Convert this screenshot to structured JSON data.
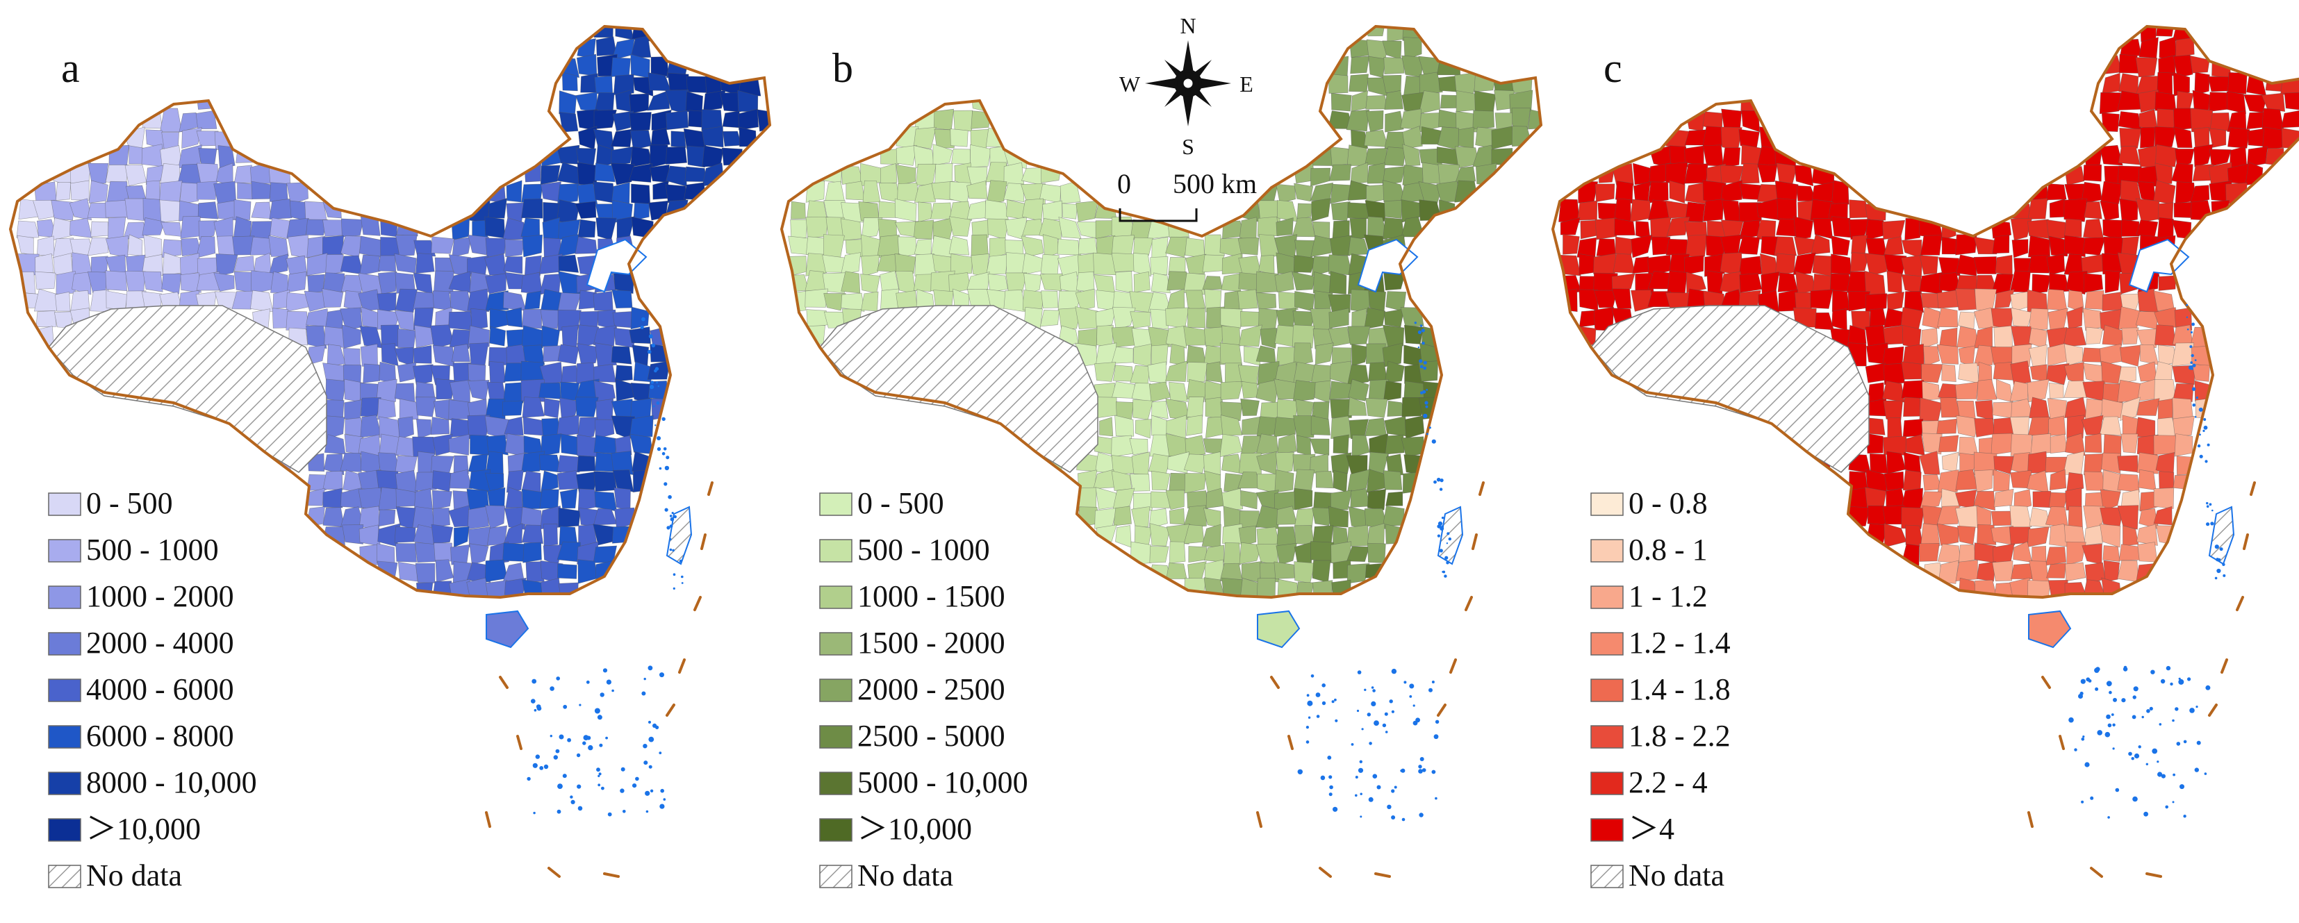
{
  "panels": [
    {
      "letter": "a",
      "palette": [
        "#d8d8f6",
        "#a8acee",
        "#8e97e6",
        "#6b7cd8",
        "#4a63cc",
        "#1f57c7",
        "#1640a8",
        "#0b2f95"
      ],
      "legend": [
        {
          "label": "0 - 500",
          "color": "#d8d8f6"
        },
        {
          "label": "500 - 1000",
          "color": "#a8acee"
        },
        {
          "label": "1000 - 2000",
          "color": "#8e97e6"
        },
        {
          "label": "2000 - 4000",
          "color": "#6b7cd8"
        },
        {
          "label": "4000 - 6000",
          "color": "#4a63cc"
        },
        {
          "label": "6000 - 8000",
          "color": "#1f57c7"
        },
        {
          "label": "8000 - 10,000",
          "color": "#1640a8"
        },
        {
          "label": "＞10,000",
          "color": "#0b2f95"
        }
      ],
      "no_data_label": "No data"
    },
    {
      "letter": "b",
      "palette": [
        "#d3efb8",
        "#c6e3a5",
        "#b1cf8c",
        "#9bb877",
        "#86a562",
        "#6e8c46",
        "#5b7531",
        "#4f6a25"
      ],
      "legend": [
        {
          "label": "0 - 500",
          "color": "#d3efb8"
        },
        {
          "label": "500 - 1000",
          "color": "#c6e3a5"
        },
        {
          "label": "1000 - 1500",
          "color": "#b1cf8c"
        },
        {
          "label": "1500 - 2000",
          "color": "#9bb877"
        },
        {
          "label": "2000 - 2500",
          "color": "#86a562"
        },
        {
          "label": "2500 - 5000",
          "color": "#6e8c46"
        },
        {
          "label": "5000 - 10,000",
          "color": "#5b7531"
        },
        {
          "label": "＞10,000",
          "color": "#4f6a25"
        }
      ],
      "no_data_label": "No data"
    },
    {
      "letter": "c",
      "palette": [
        "#fdebd6",
        "#fbcdb3",
        "#f8a88c",
        "#f58a6e",
        "#ee6a50",
        "#e84c3a",
        "#e2291d",
        "#e00000"
      ],
      "legend": [
        {
          "label": "0 - 0.8",
          "color": "#fdebd6"
        },
        {
          "label": "0.8 - 1",
          "color": "#fbcdb3"
        },
        {
          "label": "1 - 1.2",
          "color": "#f8a88c"
        },
        {
          "label": "1.2 - 1.4",
          "color": "#f58a6e"
        },
        {
          "label": "1.4 - 1.8",
          "color": "#ee6a50"
        },
        {
          "label": "1.8 - 2.2",
          "color": "#e84c3a"
        },
        {
          "label": "2.2 - 4",
          "color": "#e2291d"
        },
        {
          "label": "＞4",
          "color": "#e00000"
        }
      ],
      "no_data_label": "No data"
    }
  ],
  "compass": {
    "n": "N",
    "s": "S",
    "e": "E",
    "w": "W"
  },
  "scale_bar": {
    "start_label": "0",
    "end_label": "500 km"
  },
  "colors": {
    "border": "#b5651d",
    "coast": "#1a73e8",
    "hatch": "#9a9a9a"
  }
}
